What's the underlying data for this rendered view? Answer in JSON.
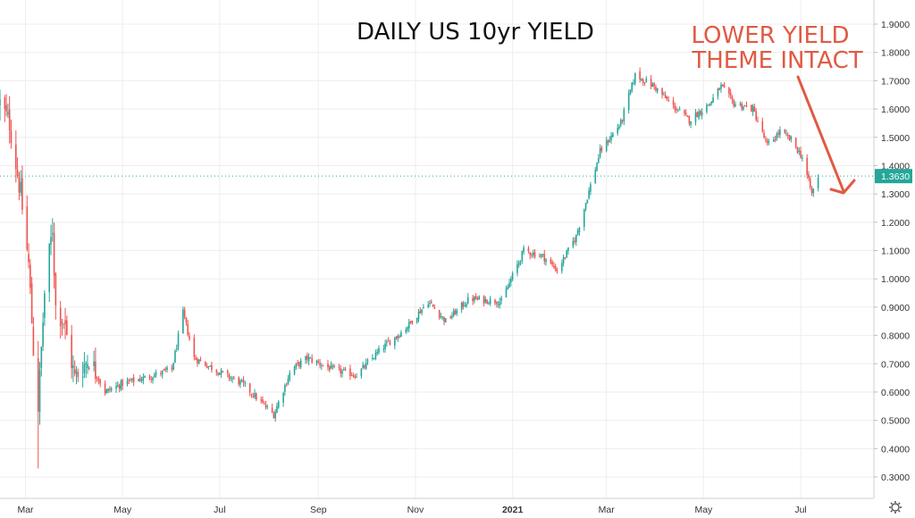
{
  "chart_data": {
    "type": "candlestick",
    "title": "DAILY US 10yr YIELD",
    "annotation": {
      "lines": [
        "LOWER YIELD",
        "THEME INTACT"
      ],
      "color": "#e05a43"
    },
    "colors": {
      "up": "#26a69a",
      "down": "#ef5350",
      "grid": "#eeeeee",
      "last_price_bg": "#26a69a"
    },
    "ylim": [
      0.25,
      1.95
    ],
    "yticks": [
      "0.3000",
      "0.4000",
      "0.5000",
      "0.6000",
      "0.7000",
      "0.8000",
      "0.9000",
      "1.0000",
      "1.1000",
      "1.2000",
      "1.3000",
      "1.4000",
      "1.5000",
      "1.6000",
      "1.7000",
      "1.8000",
      "1.9000"
    ],
    "x_range": [
      "2020-02-14",
      "2021-08-16"
    ],
    "x_ticks": [
      {
        "label": "Mar",
        "date": "2020-03-01"
      },
      {
        "label": "May",
        "date": "2020-05-01"
      },
      {
        "label": "Jul",
        "date": "2020-07-01"
      },
      {
        "label": "Sep",
        "date": "2020-09-01"
      },
      {
        "label": "Nov",
        "date": "2020-11-01"
      },
      {
        "label": "2021",
        "date": "2021-01-01",
        "bold": true
      },
      {
        "label": "Mar",
        "date": "2021-03-01"
      },
      {
        "label": "May",
        "date": "2021-05-01"
      },
      {
        "label": "Jul",
        "date": "2021-07-01"
      }
    ],
    "last_price": "1.3630",
    "approx_close_path": [
      [
        "2020-02-14",
        1.62
      ],
      [
        "2020-02-20",
        1.55
      ],
      [
        "2020-02-27",
        1.3
      ],
      [
        "2020-03-03",
        1.05
      ],
      [
        "2020-03-06",
        0.75
      ],
      [
        "2020-03-09",
        0.55
      ],
      [
        "2020-03-13",
        0.95
      ],
      [
        "2020-03-18",
        1.18
      ],
      [
        "2020-03-20",
        0.9
      ],
      [
        "2020-03-25",
        0.85
      ],
      [
        "2020-04-01",
        0.65
      ],
      [
        "2020-04-10",
        0.72
      ],
      [
        "2020-04-20",
        0.6
      ],
      [
        "2020-05-01",
        0.63
      ],
      [
        "2020-05-15",
        0.65
      ],
      [
        "2020-06-01",
        0.68
      ],
      [
        "2020-06-08",
        0.88
      ],
      [
        "2020-06-15",
        0.72
      ],
      [
        "2020-07-01",
        0.67
      ],
      [
        "2020-07-15",
        0.63
      ],
      [
        "2020-08-04",
        0.52
      ],
      [
        "2020-08-15",
        0.68
      ],
      [
        "2020-08-25",
        0.72
      ],
      [
        "2020-09-10",
        0.68
      ],
      [
        "2020-09-25",
        0.66
      ],
      [
        "2020-10-10",
        0.75
      ],
      [
        "2020-10-25",
        0.82
      ],
      [
        "2020-11-09",
        0.92
      ],
      [
        "2020-11-20",
        0.85
      ],
      [
        "2020-12-05",
        0.93
      ],
      [
        "2020-12-25",
        0.92
      ],
      [
        "2021-01-08",
        1.1
      ],
      [
        "2021-01-20",
        1.08
      ],
      [
        "2021-01-29",
        1.03
      ],
      [
        "2021-02-10",
        1.15
      ],
      [
        "2021-02-25",
        1.45
      ],
      [
        "2021-03-10",
        1.55
      ],
      [
        "2021-03-19",
        1.72
      ],
      [
        "2021-03-31",
        1.68
      ],
      [
        "2021-04-10",
        1.62
      ],
      [
        "2021-04-22",
        1.56
      ],
      [
        "2021-05-05",
        1.62
      ],
      [
        "2021-05-12",
        1.68
      ],
      [
        "2021-05-20",
        1.62
      ],
      [
        "2021-06-01",
        1.6
      ],
      [
        "2021-06-10",
        1.47
      ],
      [
        "2021-06-18",
        1.52
      ],
      [
        "2021-06-25",
        1.49
      ],
      [
        "2021-07-02",
        1.43
      ],
      [
        "2021-07-08",
        1.3
      ],
      [
        "2021-07-12",
        1.36
      ]
    ]
  }
}
